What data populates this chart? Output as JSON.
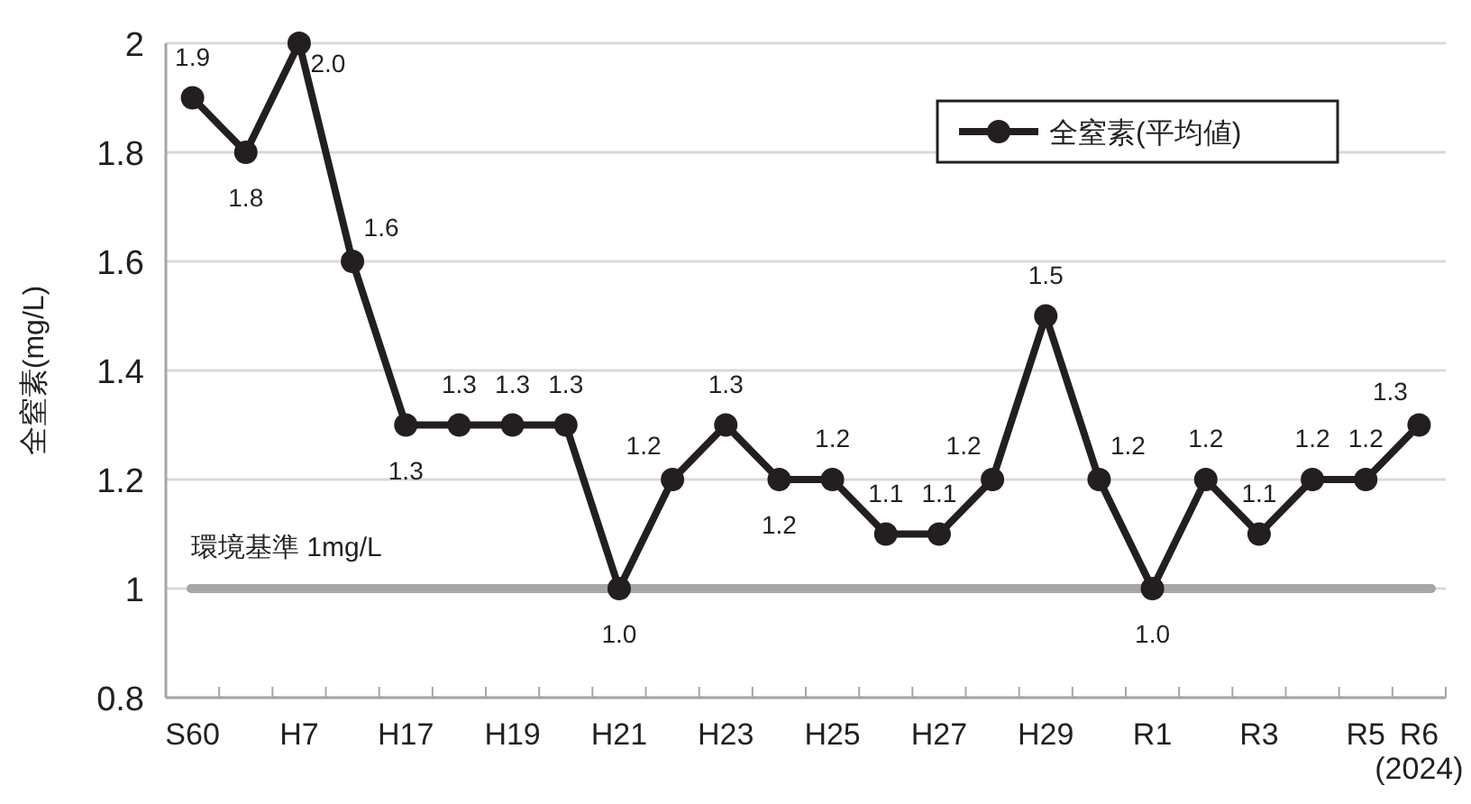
{
  "chart_data": {
    "type": "line",
    "ylabel": "全窒素(mg/L)",
    "categories": [
      "S60",
      null,
      "H7",
      null,
      "H17",
      null,
      "H19",
      null,
      "H21",
      null,
      "H23",
      null,
      "H25",
      null,
      "H27",
      null,
      "H29",
      null,
      "R1",
      null,
      "R3",
      null,
      "R5",
      "R6\n(2024)"
    ],
    "series": [
      {
        "name": "全窒素(平均値)",
        "color": "#231f20",
        "values": [
          1.9,
          1.8,
          2.0,
          1.6,
          1.3,
          1.3,
          1.3,
          1.3,
          1.0,
          1.2,
          1.3,
          1.2,
          1.2,
          1.1,
          1.1,
          1.2,
          1.5,
          1.2,
          1.0,
          1.2,
          1.1,
          1.2,
          1.2,
          1.3
        ],
        "value_labels": [
          "1.9",
          "1.8",
          "2.0",
          "1.6",
          "1.3",
          "1.3",
          "1.3",
          "1.3",
          "1.0",
          "1.2",
          "1.3",
          "1.2",
          "1.2",
          "1.1",
          "1.1",
          "1.2",
          "1.5",
          "1.2",
          "1.0",
          "1.2",
          "1.1",
          "1.2",
          "1.2",
          "1.3"
        ]
      }
    ],
    "ylim": [
      0.8,
      2
    ],
    "yticks": [
      0.8,
      1,
      1.2,
      1.4,
      1.6,
      1.8,
      2
    ],
    "grid": "y",
    "legend": "top right",
    "marker": "circle",
    "line_style": "solid",
    "ref_lines": [
      {
        "axis": "y",
        "value": 1,
        "label": "環境基準 1mg/L",
        "color": "#a6a6a6"
      }
    ]
  }
}
